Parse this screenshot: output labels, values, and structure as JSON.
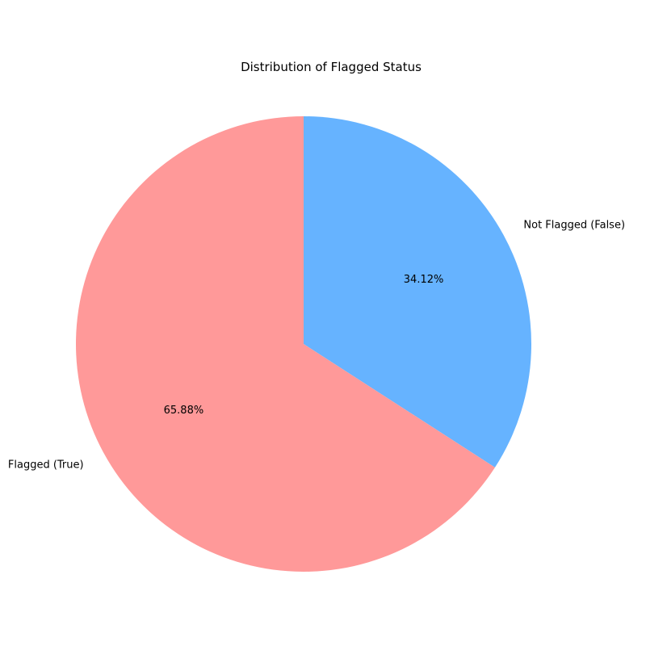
{
  "chart_data": {
    "type": "pie",
    "title": "Distribution of Flagged Status",
    "slices": [
      {
        "label": "Not Flagged (False)",
        "value": 34.12,
        "pct_label": "34.12%",
        "color": "#66b3ff"
      },
      {
        "label": "Flagged (True)",
        "value": 65.88,
        "pct_label": "65.88%",
        "color": "#ff9999"
      }
    ],
    "start_angle_deg": 90,
    "direction": "clockwise"
  }
}
